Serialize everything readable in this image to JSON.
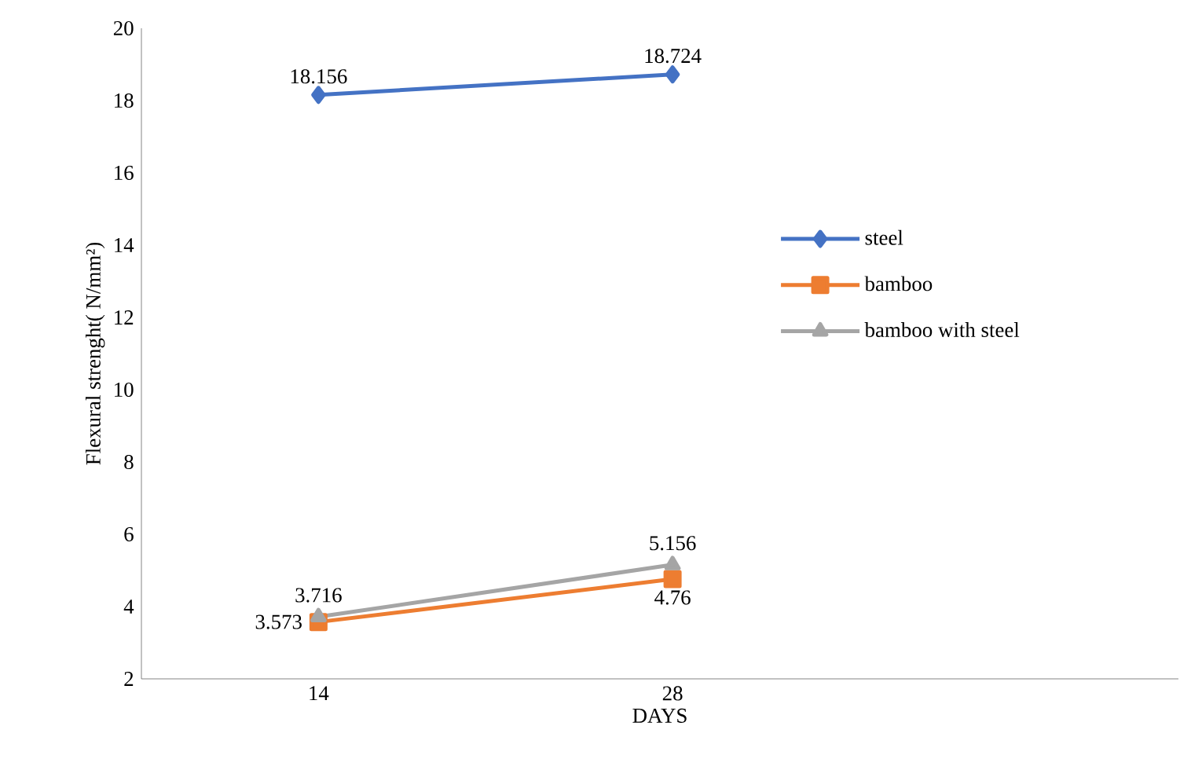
{
  "chart_data": {
    "type": "line",
    "xlabel": "DAYS",
    "ylabel": "Flexural strenght( N/mm²)",
    "x": [
      14,
      28
    ],
    "series": [
      {
        "name": "steel",
        "color": "#4472c4",
        "marker": "diamond",
        "values": [
          18.156,
          18.724
        ]
      },
      {
        "name": "bamboo",
        "color": "#ed7d31",
        "marker": "square",
        "values": [
          3.573,
          4.76
        ]
      },
      {
        "name": "bamboo with steel",
        "color": "#a5a5a5",
        "marker": "triangle",
        "values": [
          3.716,
          5.156
        ]
      }
    ],
    "xlim": [
      7,
      48
    ],
    "xticks": [
      14,
      28
    ],
    "ylim": [
      2,
      20
    ],
    "yticks": [
      2,
      4,
      6,
      8,
      10,
      12,
      14,
      16,
      18,
      20
    ],
    "grid": false,
    "legend": "right",
    "data_labels": true
  }
}
